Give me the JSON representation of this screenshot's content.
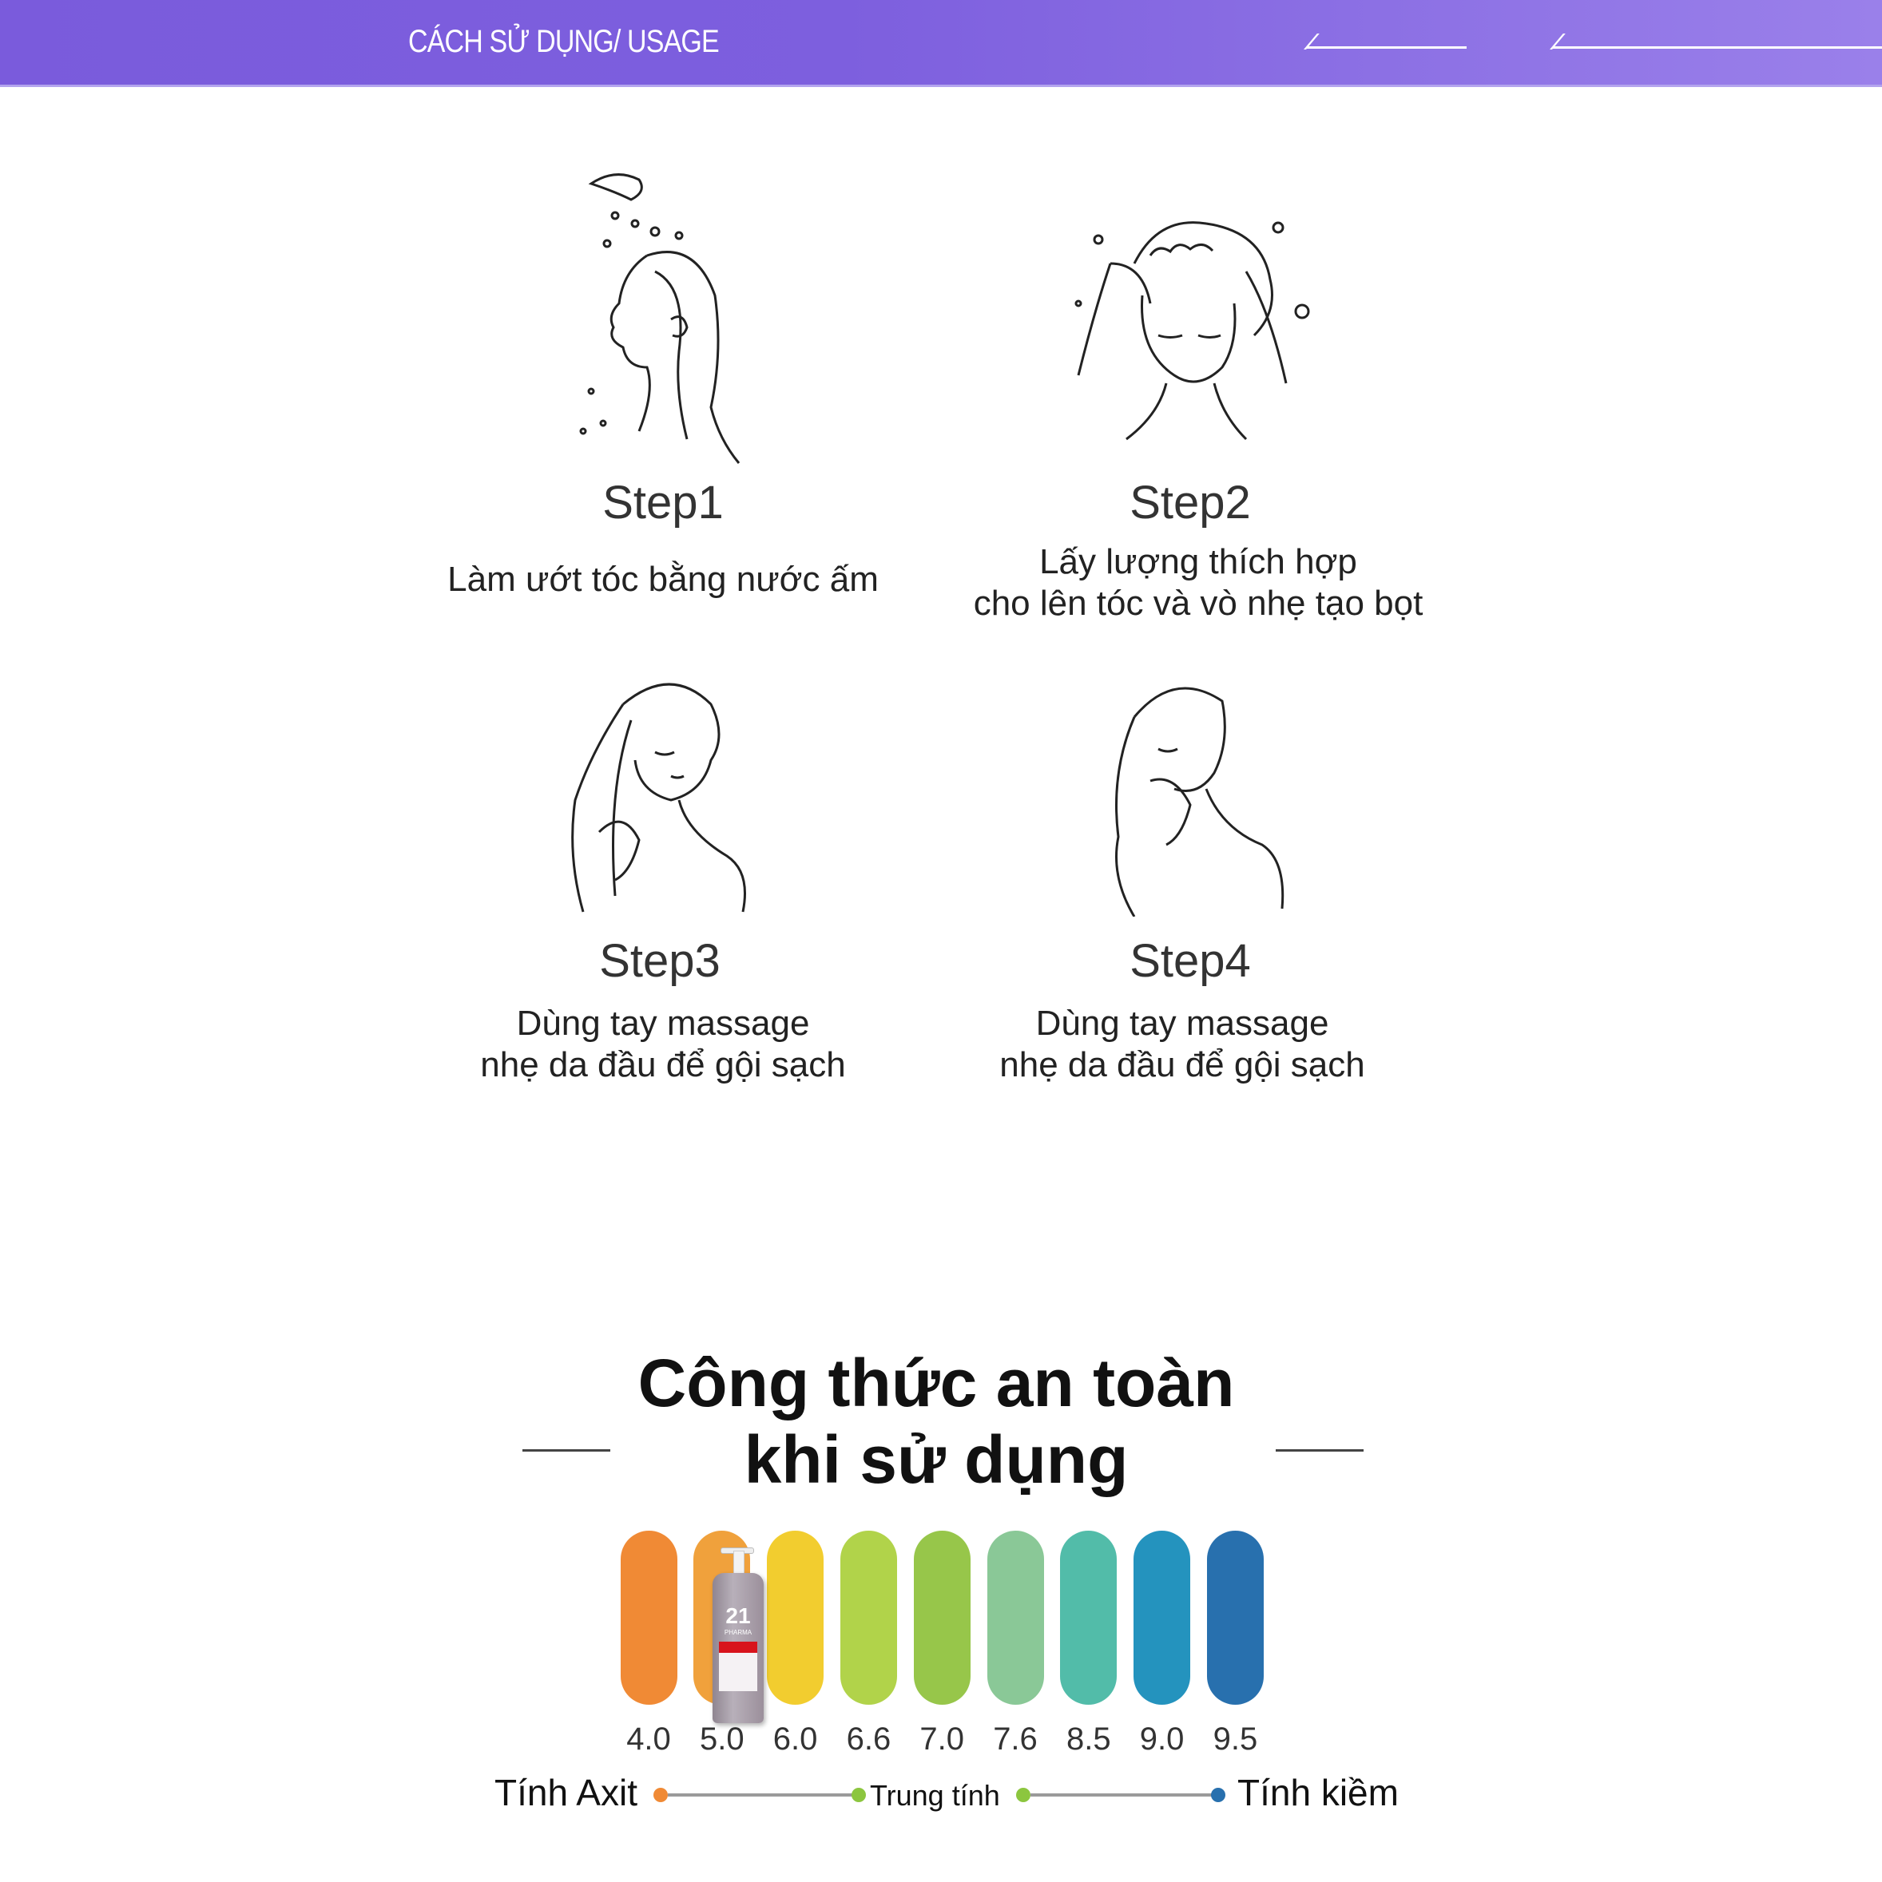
{
  "header": {
    "title": "CÁCH SỬ DỤNG/ USAGE",
    "bg_color": "#7a5bdc"
  },
  "steps": [
    {
      "title": "Step1",
      "desc": [
        "Làm ướt tóc bằng nước ấm"
      ],
      "icon": "shower-hair-wetting-illustration"
    },
    {
      "title": "Step2",
      "desc": [
        "Lấy lượng thích hợp",
        "cho lên tóc và vò nhẹ tạo bọt"
      ],
      "icon": "lathering-shampoo-illustration"
    },
    {
      "title": "Step3",
      "desc": [
        "Dùng tay massage",
        "nhẹ da đầu để gội sạch"
      ],
      "icon": "massaging-scalp-illustration"
    },
    {
      "title": "Step4",
      "desc": [
        "Dùng tay massage",
        "nhẹ da đầu để gội sạch"
      ],
      "icon": "rinsing-hair-illustration"
    }
  ],
  "safety": {
    "title": [
      "Công thức an toàn",
      "khi sử dụng"
    ],
    "ph_scale": [
      {
        "value": "4.0",
        "color": "#F08A35"
      },
      {
        "value": "5.0",
        "color": "#F0A13C"
      },
      {
        "value": "6.0",
        "color": "#F2CD2F"
      },
      {
        "value": "6.6",
        "color": "#B1D34A"
      },
      {
        "value": "7.0",
        "color": "#97C64A"
      },
      {
        "value": "7.6",
        "color": "#8AC897"
      },
      {
        "value": "8.5",
        "color": "#52BCA9"
      },
      {
        "value": "9.0",
        "color": "#2493BE"
      },
      {
        "value": "9.5",
        "color": "#2870AE"
      }
    ],
    "product_position": "5.0",
    "product_label": {
      "number": "21",
      "brand": "PHARMA"
    },
    "legend": {
      "acid": "Tính Axit",
      "neutral": "Trung tính",
      "alkaline": "Tính kiềm",
      "acid_color": "#F08A35",
      "neutral_color": "#8CC63F",
      "alkaline_color": "#2870AE"
    }
  }
}
